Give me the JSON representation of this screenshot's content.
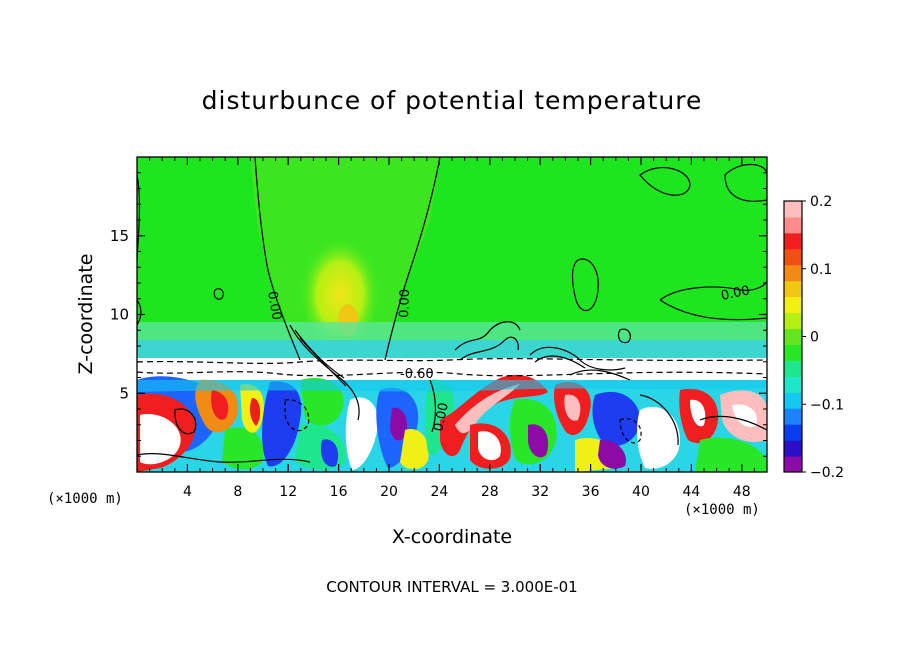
{
  "chart_data": {
    "type": "heatmap",
    "title": "disturbunce of potential temperature",
    "xlabel": "X-coordinate",
    "ylabel": "Z-coordinate",
    "x_unit": "(×1000 m)",
    "y_unit": "(×1000 m)",
    "xlim": [
      0,
      50
    ],
    "ylim": [
      0,
      20
    ],
    "x_ticks": [
      4,
      8,
      12,
      16,
      20,
      24,
      28,
      32,
      36,
      40,
      44,
      48
    ],
    "y_ticks": [
      5,
      10,
      15
    ],
    "colorbar": {
      "min": -0.2,
      "max": 0.2,
      "ticks": [
        0.2,
        0.1,
        0,
        -0.1,
        -0.2
      ],
      "tick_labels": [
        "0.2",
        "0.1",
        "0",
        "−0.1",
        "−0.2"
      ],
      "colors": [
        "#8c0aa5",
        "#2a0ec8",
        "#0a3cf0",
        "#1e82ff",
        "#14c8f0",
        "#1ee6c8",
        "#1ee68c",
        "#28e628",
        "#64e61e",
        "#b4f014",
        "#f0f014",
        "#f0c814",
        "#f08c14",
        "#f05014",
        "#f01e1e",
        "#ff8c8c",
        "#ffbebe"
      ]
    },
    "contour_labels": [
      "0.00",
      "0.00",
      "0.00",
      "-0.60",
      "0.00"
    ],
    "annotation": "CONTOUR INTERVAL = 3.000E-01"
  }
}
